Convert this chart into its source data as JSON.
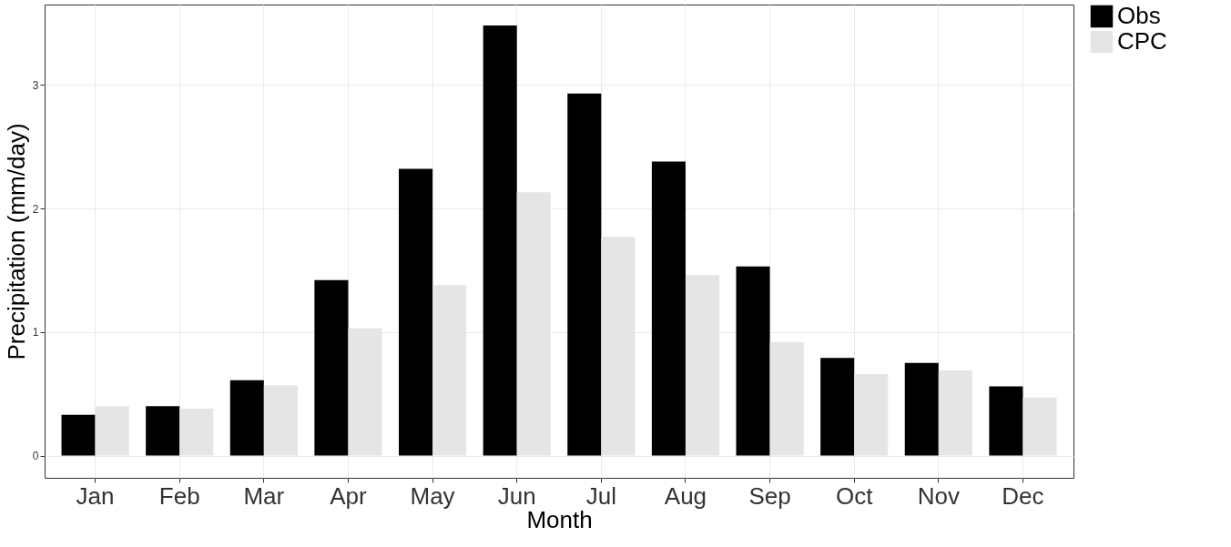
{
  "chart_data": {
    "type": "bar",
    "xlabel": "Month",
    "ylabel": "Precipitation (mm/day)",
    "categories": [
      "Jan",
      "Feb",
      "Mar",
      "Apr",
      "May",
      "Jun",
      "Jul",
      "Aug",
      "Sep",
      "Oct",
      "Nov",
      "Dec"
    ],
    "series": [
      {
        "name": "Obs",
        "color": "#000000",
        "values": [
          0.33,
          0.4,
          0.61,
          1.42,
          2.32,
          3.48,
          2.93,
          2.38,
          1.53,
          0.79,
          0.75,
          0.56
        ]
      },
      {
        "name": "CPC",
        "color": "#e5e5e5",
        "values": [
          0.4,
          0.38,
          0.57,
          1.03,
          1.38,
          2.13,
          1.77,
          1.46,
          0.92,
          0.66,
          0.69,
          0.47
        ]
      }
    ],
    "ylim": [
      -0.18,
      3.65
    ],
    "yticks": [
      0,
      1,
      2,
      3
    ],
    "grid": true,
    "legend": "right"
  }
}
